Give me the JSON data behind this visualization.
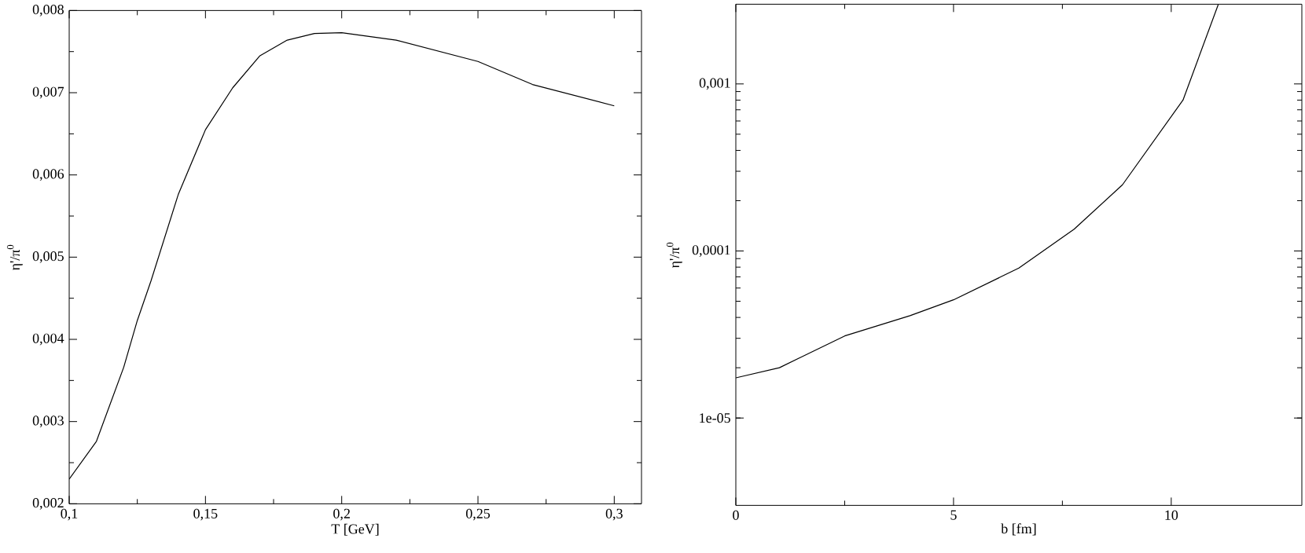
{
  "chart_data": [
    {
      "type": "line",
      "xlabel": "T [GeV]",
      "ylabel": "η'/π$^{0}$",
      "color": "#000000",
      "x": [
        0.1,
        0.11,
        0.12,
        0.125,
        0.13,
        0.14,
        0.15,
        0.16,
        0.17,
        0.18,
        0.19,
        0.2,
        0.22,
        0.25,
        0.27,
        0.3
      ],
      "values": [
        0.0023,
        0.00276,
        0.00366,
        0.00423,
        0.00471,
        0.00576,
        0.00655,
        0.00706,
        0.00745,
        0.00764,
        0.00772,
        0.00773,
        0.00764,
        0.00738,
        0.0071,
        0.00684
      ],
      "xlim": [
        0.1,
        0.31
      ],
      "ylim": [
        0.002,
        0.008
      ],
      "xticks": [
        {
          "value": 0.1,
          "label": "0,1"
        },
        {
          "value": 0.15,
          "label": "0,15"
        },
        {
          "value": 0.2,
          "label": "0,2"
        },
        {
          "value": 0.25,
          "label": "0,25"
        },
        {
          "value": 0.3,
          "label": "0,3"
        }
      ],
      "yticks": [
        {
          "value": 0.002,
          "label": "0,002"
        },
        {
          "value": 0.003,
          "label": "0,003"
        },
        {
          "value": 0.004,
          "label": "0,004"
        },
        {
          "value": 0.005,
          "label": "0,005"
        },
        {
          "value": 0.006,
          "label": "0,006"
        },
        {
          "value": 0.007,
          "label": "0,007"
        },
        {
          "value": 0.008,
          "label": "0,008"
        }
      ]
    },
    {
      "type": "line",
      "xlabel": "b [fm]",
      "ylabel": "η'/π$^{0}$",
      "color": "#000000",
      "log": "y",
      "x": [
        0,
        1,
        2.5,
        4,
        5,
        6.5,
        7.77,
        8.88,
        10.27,
        11.08
      ],
      "values": [
        1.74e-05,
        2e-05,
        3.1e-05,
        4.1e-05,
        5.1e-05,
        7.9e-05,
        0.000135,
        0.000249,
        0.0008,
        0.00299
      ],
      "xlim": [
        0,
        13
      ],
      "ylim": [
        3e-06,
        0.003
      ],
      "xticks": [
        0,
        5,
        10
      ],
      "yticks": [
        {
          "value": 1e-05,
          "label": "1e-05"
        },
        {
          "value": 0.0001,
          "label": "0,0001"
        },
        {
          "value": 0.001,
          "label": "0,001"
        }
      ]
    }
  ]
}
